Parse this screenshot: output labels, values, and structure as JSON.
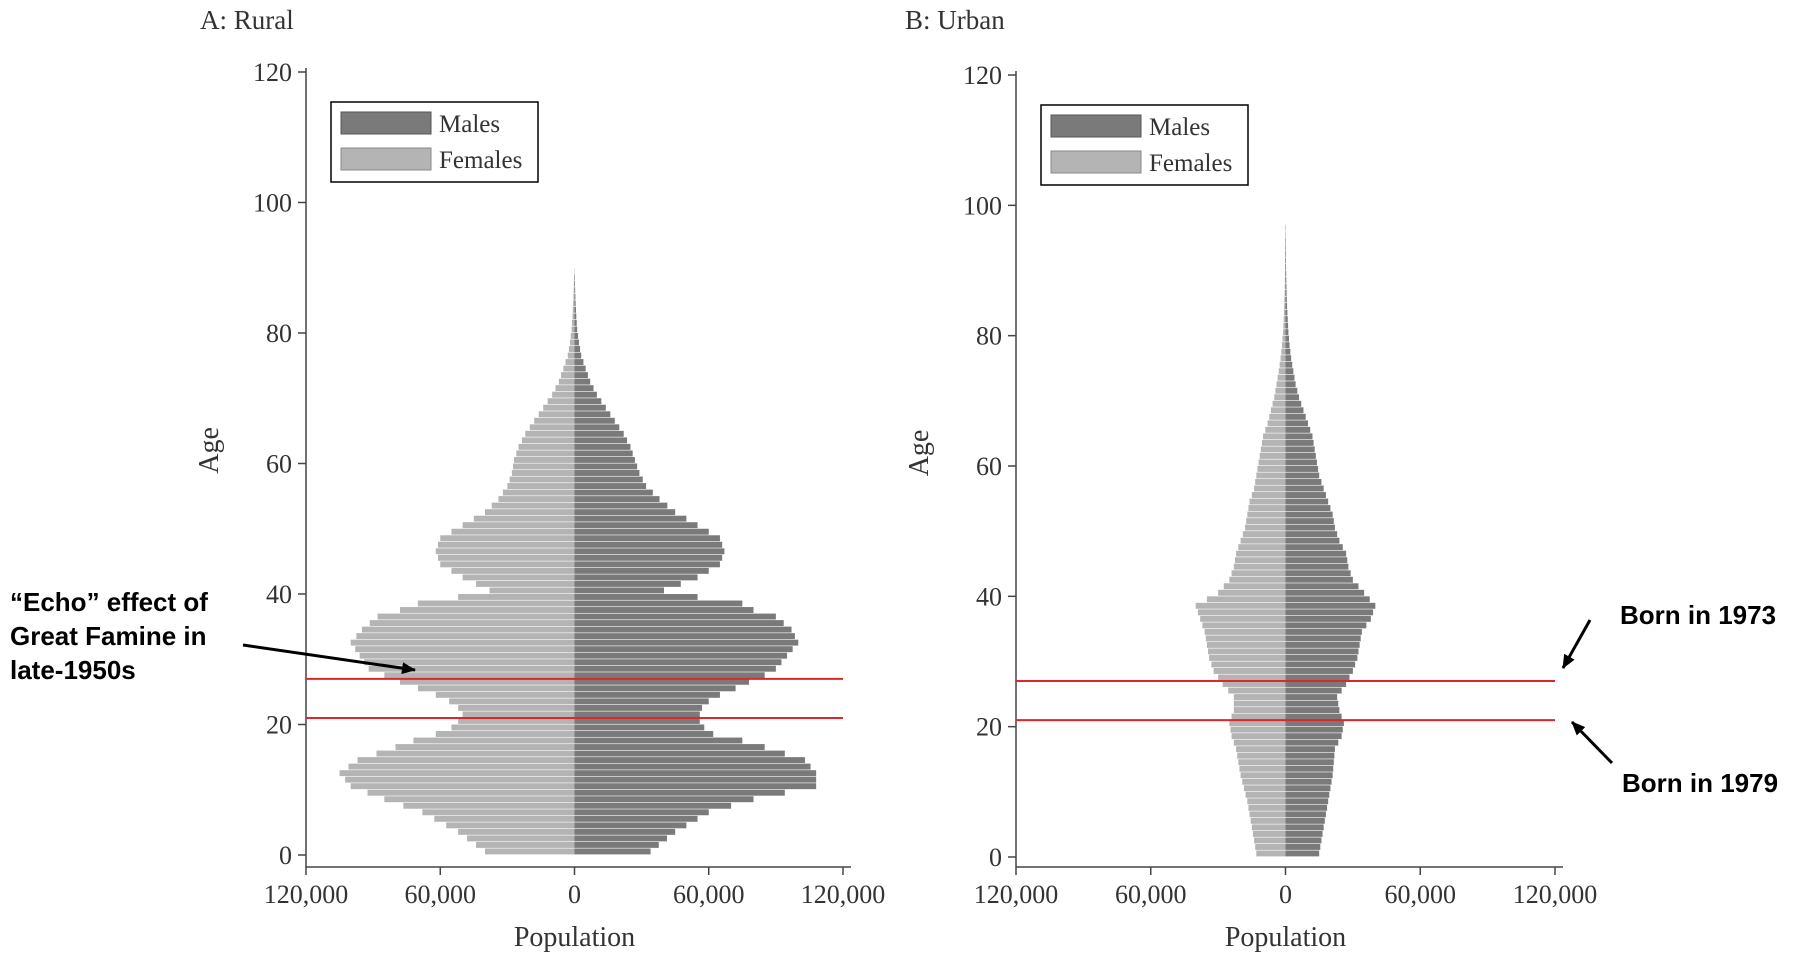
{
  "colors": {
    "males": "#7a7a7a",
    "females": "#b4b4b4",
    "axis": "#444444",
    "marker_line": "#e0252b"
  },
  "panels": [
    {
      "title": "A: Rural"
    },
    {
      "title": "B: Urban"
    }
  ],
  "annotations": {
    "echo": "“Echo” effect of\nGreat Famine in\nlate-1950s",
    "born_1973": "Born in 1973",
    "born_1979": "Born in 1979"
  },
  "chart_data": [
    {
      "type": "bar",
      "orientation": "horizontal",
      "title": "A: Rural",
      "xlabel": "Population",
      "ylabel": "Age",
      "xlim": [
        -120000,
        120000
      ],
      "ylim": [
        0,
        120
      ],
      "xticks": [
        -120000,
        -60000,
        0,
        60000,
        120000
      ],
      "xtick_labels": [
        "120,000",
        "60,000",
        "0",
        "60,000",
        "120,000"
      ],
      "yticks": [
        0,
        20,
        40,
        60,
        80,
        100,
        120
      ],
      "legend": {
        "position": "top-left",
        "entries": [
          "Males",
          "Females"
        ]
      },
      "reference_lines": [
        27,
        21
      ],
      "profile_points": {
        "ages": [
          0,
          3,
          6,
          8,
          10,
          12,
          14,
          16,
          17,
          18,
          19,
          20,
          21,
          22,
          23,
          24,
          25,
          26,
          27,
          28,
          30,
          32,
          34,
          36,
          37,
          38,
          39,
          40,
          42,
          44,
          46,
          48,
          50,
          52,
          54,
          56,
          58,
          60,
          62,
          64,
          66,
          68,
          70,
          72,
          74,
          76,
          78,
          80,
          82,
          84,
          86,
          88,
          90,
          92,
          94,
          100,
          105,
          110,
          114
        ],
        "males": [
          34000,
          45000,
          60000,
          80000,
          108000,
          108000,
          103000,
          85000,
          75000,
          62000,
          58000,
          56000,
          56000,
          57000,
          60000,
          65000,
          72000,
          78000,
          85000,
          90000,
          95000,
          100000,
          97000,
          90000,
          80000,
          75000,
          55000,
          40000,
          55000,
          65000,
          67000,
          65000,
          55000,
          45000,
          38000,
          32000,
          29000,
          27000,
          25000,
          22000,
          18000,
          14000,
          10000,
          7000,
          5000,
          3000,
          2000,
          1200,
          800,
          500,
          300,
          150,
          100,
          60,
          30,
          15,
          8,
          4,
          2
        ],
        "females": [
          40000,
          52000,
          68000,
          85000,
          100000,
          105000,
          97000,
          80000,
          72000,
          62000,
          55000,
          52000,
          50000,
          52000,
          56000,
          62000,
          70000,
          78000,
          85000,
          92000,
          96000,
          100000,
          95000,
          88000,
          78000,
          70000,
          52000,
          38000,
          50000,
          60000,
          62000,
          60000,
          50000,
          40000,
          34000,
          30000,
          28000,
          27000,
          25000,
          22000,
          18000,
          14000,
          10000,
          7000,
          5000,
          3000,
          2000,
          1300,
          900,
          600,
          350,
          200,
          120,
          70,
          40,
          15,
          8,
          4,
          2
        ]
      }
    },
    {
      "type": "bar",
      "orientation": "horizontal",
      "title": "B: Urban",
      "xlabel": "Population",
      "ylabel": "Age",
      "xlim": [
        -120000,
        120000
      ],
      "ylim": [
        0,
        120
      ],
      "xticks": [
        -120000,
        -60000,
        0,
        60000,
        120000
      ],
      "xtick_labels": [
        "120,000",
        "60,000",
        "0",
        "60,000",
        "120,000"
      ],
      "yticks": [
        0,
        20,
        40,
        60,
        80,
        100,
        120
      ],
      "legend": {
        "position": "top-left",
        "entries": [
          "Males",
          "Females"
        ]
      },
      "reference_lines": [
        27,
        21
      ],
      "profile_points": {
        "ages": [
          0,
          4,
          8,
          12,
          16,
          18,
          20,
          22,
          24,
          26,
          28,
          30,
          32,
          34,
          36,
          38,
          40,
          42,
          44,
          46,
          48,
          50,
          52,
          54,
          56,
          58,
          60,
          62,
          64,
          66,
          68,
          70,
          72,
          74,
          76,
          78,
          80,
          82,
          84,
          86,
          88,
          90,
          95,
          100,
          105,
          108,
          115
        ],
        "males": [
          15000,
          17000,
          19000,
          21000,
          22000,
          25000,
          26000,
          24000,
          23000,
          27000,
          30000,
          32000,
          33000,
          34000,
          38000,
          40000,
          35000,
          30000,
          28000,
          27000,
          24000,
          22000,
          21000,
          19000,
          17000,
          15000,
          14000,
          13000,
          12000,
          10000,
          8000,
          6000,
          4500,
          3500,
          2500,
          1800,
          1300,
          1000,
          700,
          500,
          350,
          250,
          150,
          100,
          60,
          30,
          10
        ],
        "females": [
          13000,
          15000,
          17000,
          20000,
          22000,
          24000,
          25000,
          23000,
          23000,
          28000,
          32000,
          34000,
          35000,
          36000,
          38000,
          40000,
          30000,
          25000,
          23000,
          22000,
          20000,
          18000,
          17000,
          16000,
          14000,
          13000,
          12000,
          11000,
          10000,
          8000,
          6500,
          5000,
          4000,
          3000,
          2200,
          1600,
          1100,
          800,
          600,
          400,
          280,
          200,
          120,
          80,
          50,
          25,
          8
        ]
      }
    }
  ]
}
